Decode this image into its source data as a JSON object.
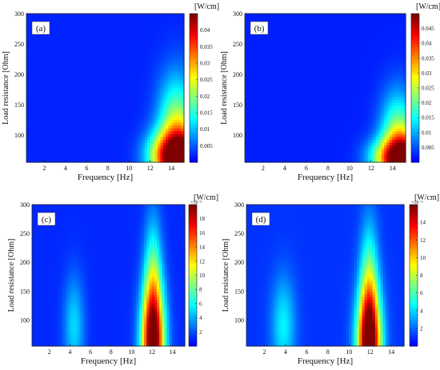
{
  "figure": {
    "panels": [
      {
        "id": "a",
        "panel_label": "(a)",
        "xlabel": "Frequency [Hz]",
        "ylabel": "Load resistance [Ohm]",
        "colorbar_unit": "[W/cm]",
        "colorbar_multiplier": "",
        "x_ticks": [
          "2",
          "4",
          "6",
          "8",
          "10",
          "12",
          "14"
        ],
        "y_ticks": [
          "100",
          "150",
          "200",
          "250",
          "300"
        ],
        "colorbar_ticks": [
          "0.005",
          "0.01",
          "0.015",
          "0.02",
          "0.025",
          "0.03",
          "0.035",
          "0.04"
        ]
      },
      {
        "id": "b",
        "panel_label": "(b)",
        "xlabel": "Frequency [Hz]",
        "ylabel": "Load resistance [Ohm]",
        "colorbar_unit": "[W/cm]",
        "colorbar_multiplier": "",
        "x_ticks": [
          "2",
          "4",
          "6",
          "8",
          "10",
          "12",
          "14"
        ],
        "y_ticks": [
          "100",
          "150",
          "200",
          "250",
          "300"
        ],
        "colorbar_ticks": [
          "0.005",
          "0.01",
          "0.015",
          "0.02",
          "0.025",
          "0.03",
          "0.035",
          "0.04",
          "0.045"
        ]
      },
      {
        "id": "c",
        "panel_label": "(c)",
        "xlabel": "Frequency [Hz]",
        "ylabel": "Load resistance [Ohm]",
        "colorbar_unit": "[W/cm]",
        "colorbar_multiplier": "×10⁻³",
        "x_ticks": [
          "2",
          "4",
          "6",
          "8",
          "10",
          "12",
          "14"
        ],
        "y_ticks": [
          "100",
          "150",
          "200",
          "250",
          "300"
        ],
        "colorbar_ticks": [
          "2",
          "4",
          "6",
          "8",
          "10",
          "12",
          "14",
          "16",
          "18"
        ]
      },
      {
        "id": "d",
        "panel_label": "(d)",
        "xlabel": "Frequency [Hz]",
        "ylabel": "Load resistance [Ohm]",
        "colorbar_unit": "[W/cm]",
        "colorbar_multiplier": "×10⁻³",
        "x_ticks": [
          "2",
          "4",
          "6",
          "8",
          "10",
          "12",
          "14"
        ],
        "y_ticks": [
          "100",
          "150",
          "200",
          "250",
          "300"
        ],
        "colorbar_ticks": [
          "2",
          "4",
          "6",
          "8",
          "10",
          "12",
          "14"
        ]
      }
    ]
  },
  "chart_data": [
    {
      "type": "heatmap",
      "panel": "(a)",
      "xlabel": "Frequency [Hz]",
      "ylabel": "Load resistance [Ohm]",
      "colorbar_label": "[W/cm]",
      "xlim": [
        0.3,
        15.2
      ],
      "ylim": [
        55,
        300
      ],
      "clim": [
        0,
        0.045
      ],
      "colormap": "jet",
      "hotspots": [
        {
          "x": 15.2,
          "y": 55,
          "value": 0.045,
          "sx": 1.6,
          "sy": 35
        },
        {
          "x": 14.5,
          "y": 110,
          "value": 0.02,
          "sx": 1.2,
          "sy": 60
        },
        {
          "x": 13.0,
          "y": 70,
          "value": 0.012,
          "sx": 1.2,
          "sy": 25
        }
      ],
      "background": 0.002
    },
    {
      "type": "heatmap",
      "panel": "(b)",
      "xlabel": "Frequency [Hz]",
      "ylabel": "Load resistance [Ohm]",
      "colorbar_label": "[W/cm]",
      "xlim": [
        0.3,
        15.2
      ],
      "ylim": [
        55,
        300
      ],
      "clim": [
        0,
        0.05
      ],
      "colormap": "jet",
      "hotspots": [
        {
          "x": 15.2,
          "y": 55,
          "value": 0.05,
          "sx": 1.4,
          "sy": 30
        },
        {
          "x": 14.5,
          "y": 100,
          "value": 0.02,
          "sx": 1.1,
          "sy": 50
        },
        {
          "x": 13.0,
          "y": 65,
          "value": 0.012,
          "sx": 1.2,
          "sy": 20
        }
      ],
      "background": 0.002
    },
    {
      "type": "heatmap",
      "panel": "(c)",
      "xlabel": "Frequency [Hz]",
      "ylabel": "Load resistance [Ohm]",
      "colorbar_label": "[W/cm] ×10^-3",
      "xlim": [
        0.3,
        15.2
      ],
      "ylim": [
        55,
        300
      ],
      "clim": [
        0,
        0.02
      ],
      "colormap": "jet",
      "hotspots": [
        {
          "x": 12.1,
          "y": 55,
          "value": 0.019,
          "sx": 0.8,
          "sy": 70
        },
        {
          "x": 12.1,
          "y": 160,
          "value": 0.007,
          "sx": 0.6,
          "sy": 80
        },
        {
          "x": 4.4,
          "y": 90,
          "value": 0.004,
          "sx": 0.7,
          "sy": 60
        }
      ],
      "background": 0.001
    },
    {
      "type": "heatmap",
      "panel": "(d)",
      "xlabel": "Frequency [Hz]",
      "ylabel": "Load resistance [Ohm]",
      "colorbar_label": "[W/cm] ×10^-3",
      "xlim": [
        0.3,
        15.2
      ],
      "ylim": [
        55,
        300
      ],
      "clim": [
        0,
        0.016
      ],
      "colormap": "jet",
      "hotspots": [
        {
          "x": 11.9,
          "y": 55,
          "value": 0.0155,
          "sx": 0.8,
          "sy": 65
        },
        {
          "x": 11.9,
          "y": 150,
          "value": 0.006,
          "sx": 0.6,
          "sy": 80
        },
        {
          "x": 3.8,
          "y": 90,
          "value": 0.0035,
          "sx": 0.8,
          "sy": 60
        }
      ],
      "background": 0.001
    }
  ]
}
